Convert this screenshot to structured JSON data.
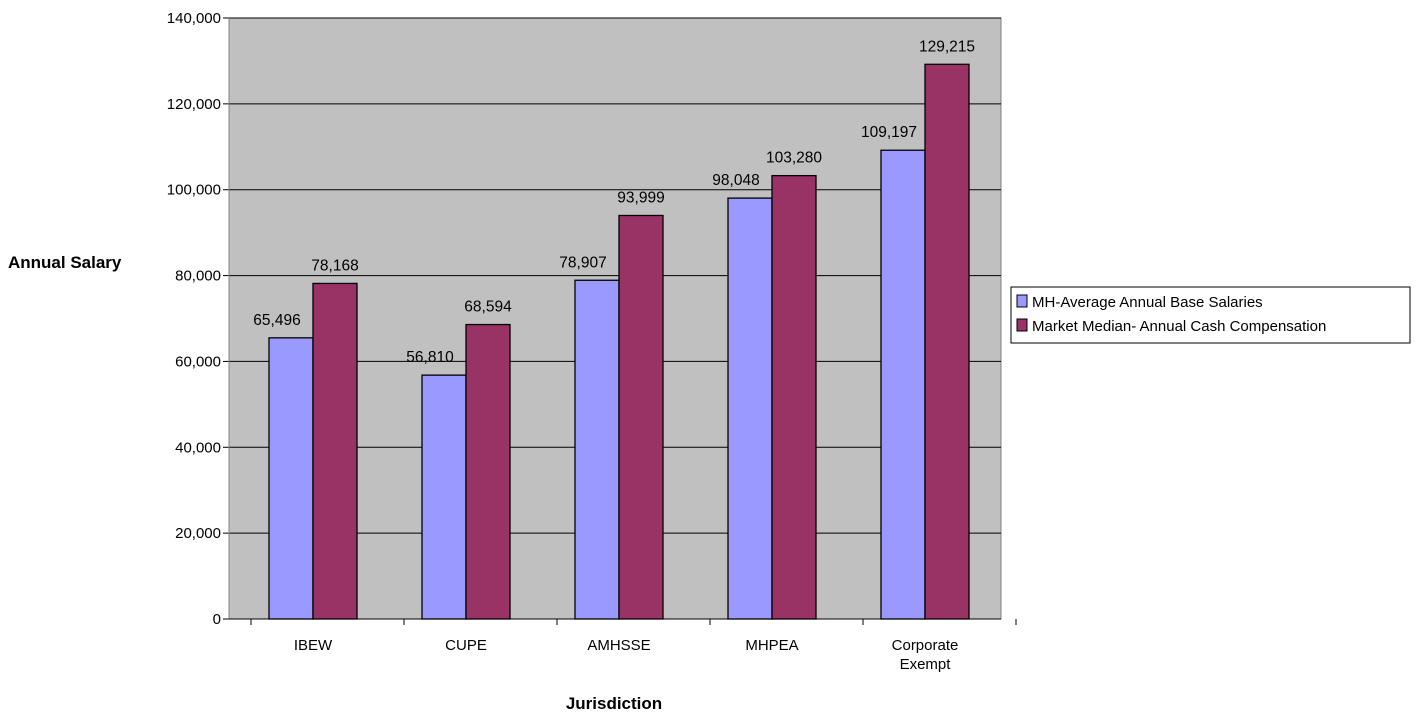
{
  "chart_data": {
    "type": "bar",
    "categories": [
      [
        "IBEW"
      ],
      [
        "CUPE"
      ],
      [
        "AMHSSE"
      ],
      [
        "MHPEA"
      ],
      [
        "Corporate",
        "Exempt"
      ]
    ],
    "series": [
      {
        "name": "MH-Average Annual Base Salaries",
        "values": [
          65496,
          56810,
          78907,
          98048,
          109197
        ],
        "color": "#9999ff",
        "labels": [
          "65,496",
          "56,810",
          "78,907",
          "98,048",
          "109,197"
        ]
      },
      {
        "name": "Market Median- Annual Cash Compensation",
        "values": [
          78168,
          68594,
          93999,
          103280,
          129215
        ],
        "color": "#993366",
        "labels": [
          "78,168",
          "68,594",
          "93,999",
          "103,280",
          "129,215"
        ]
      }
    ],
    "xlabel": "Jurisdiction",
    "ylabel": "Annual Salary",
    "ylim": [
      0,
      140000
    ],
    "yticks": [
      0,
      20000,
      40000,
      60000,
      80000,
      100000,
      120000,
      140000
    ],
    "ytick_labels": [
      "0",
      "20,000",
      "40,000",
      "60,000",
      "80,000",
      "100,000",
      "120,000",
      "140,000"
    ],
    "grid": true,
    "plot_background": "#c0c0c0",
    "legend_position": "right"
  }
}
